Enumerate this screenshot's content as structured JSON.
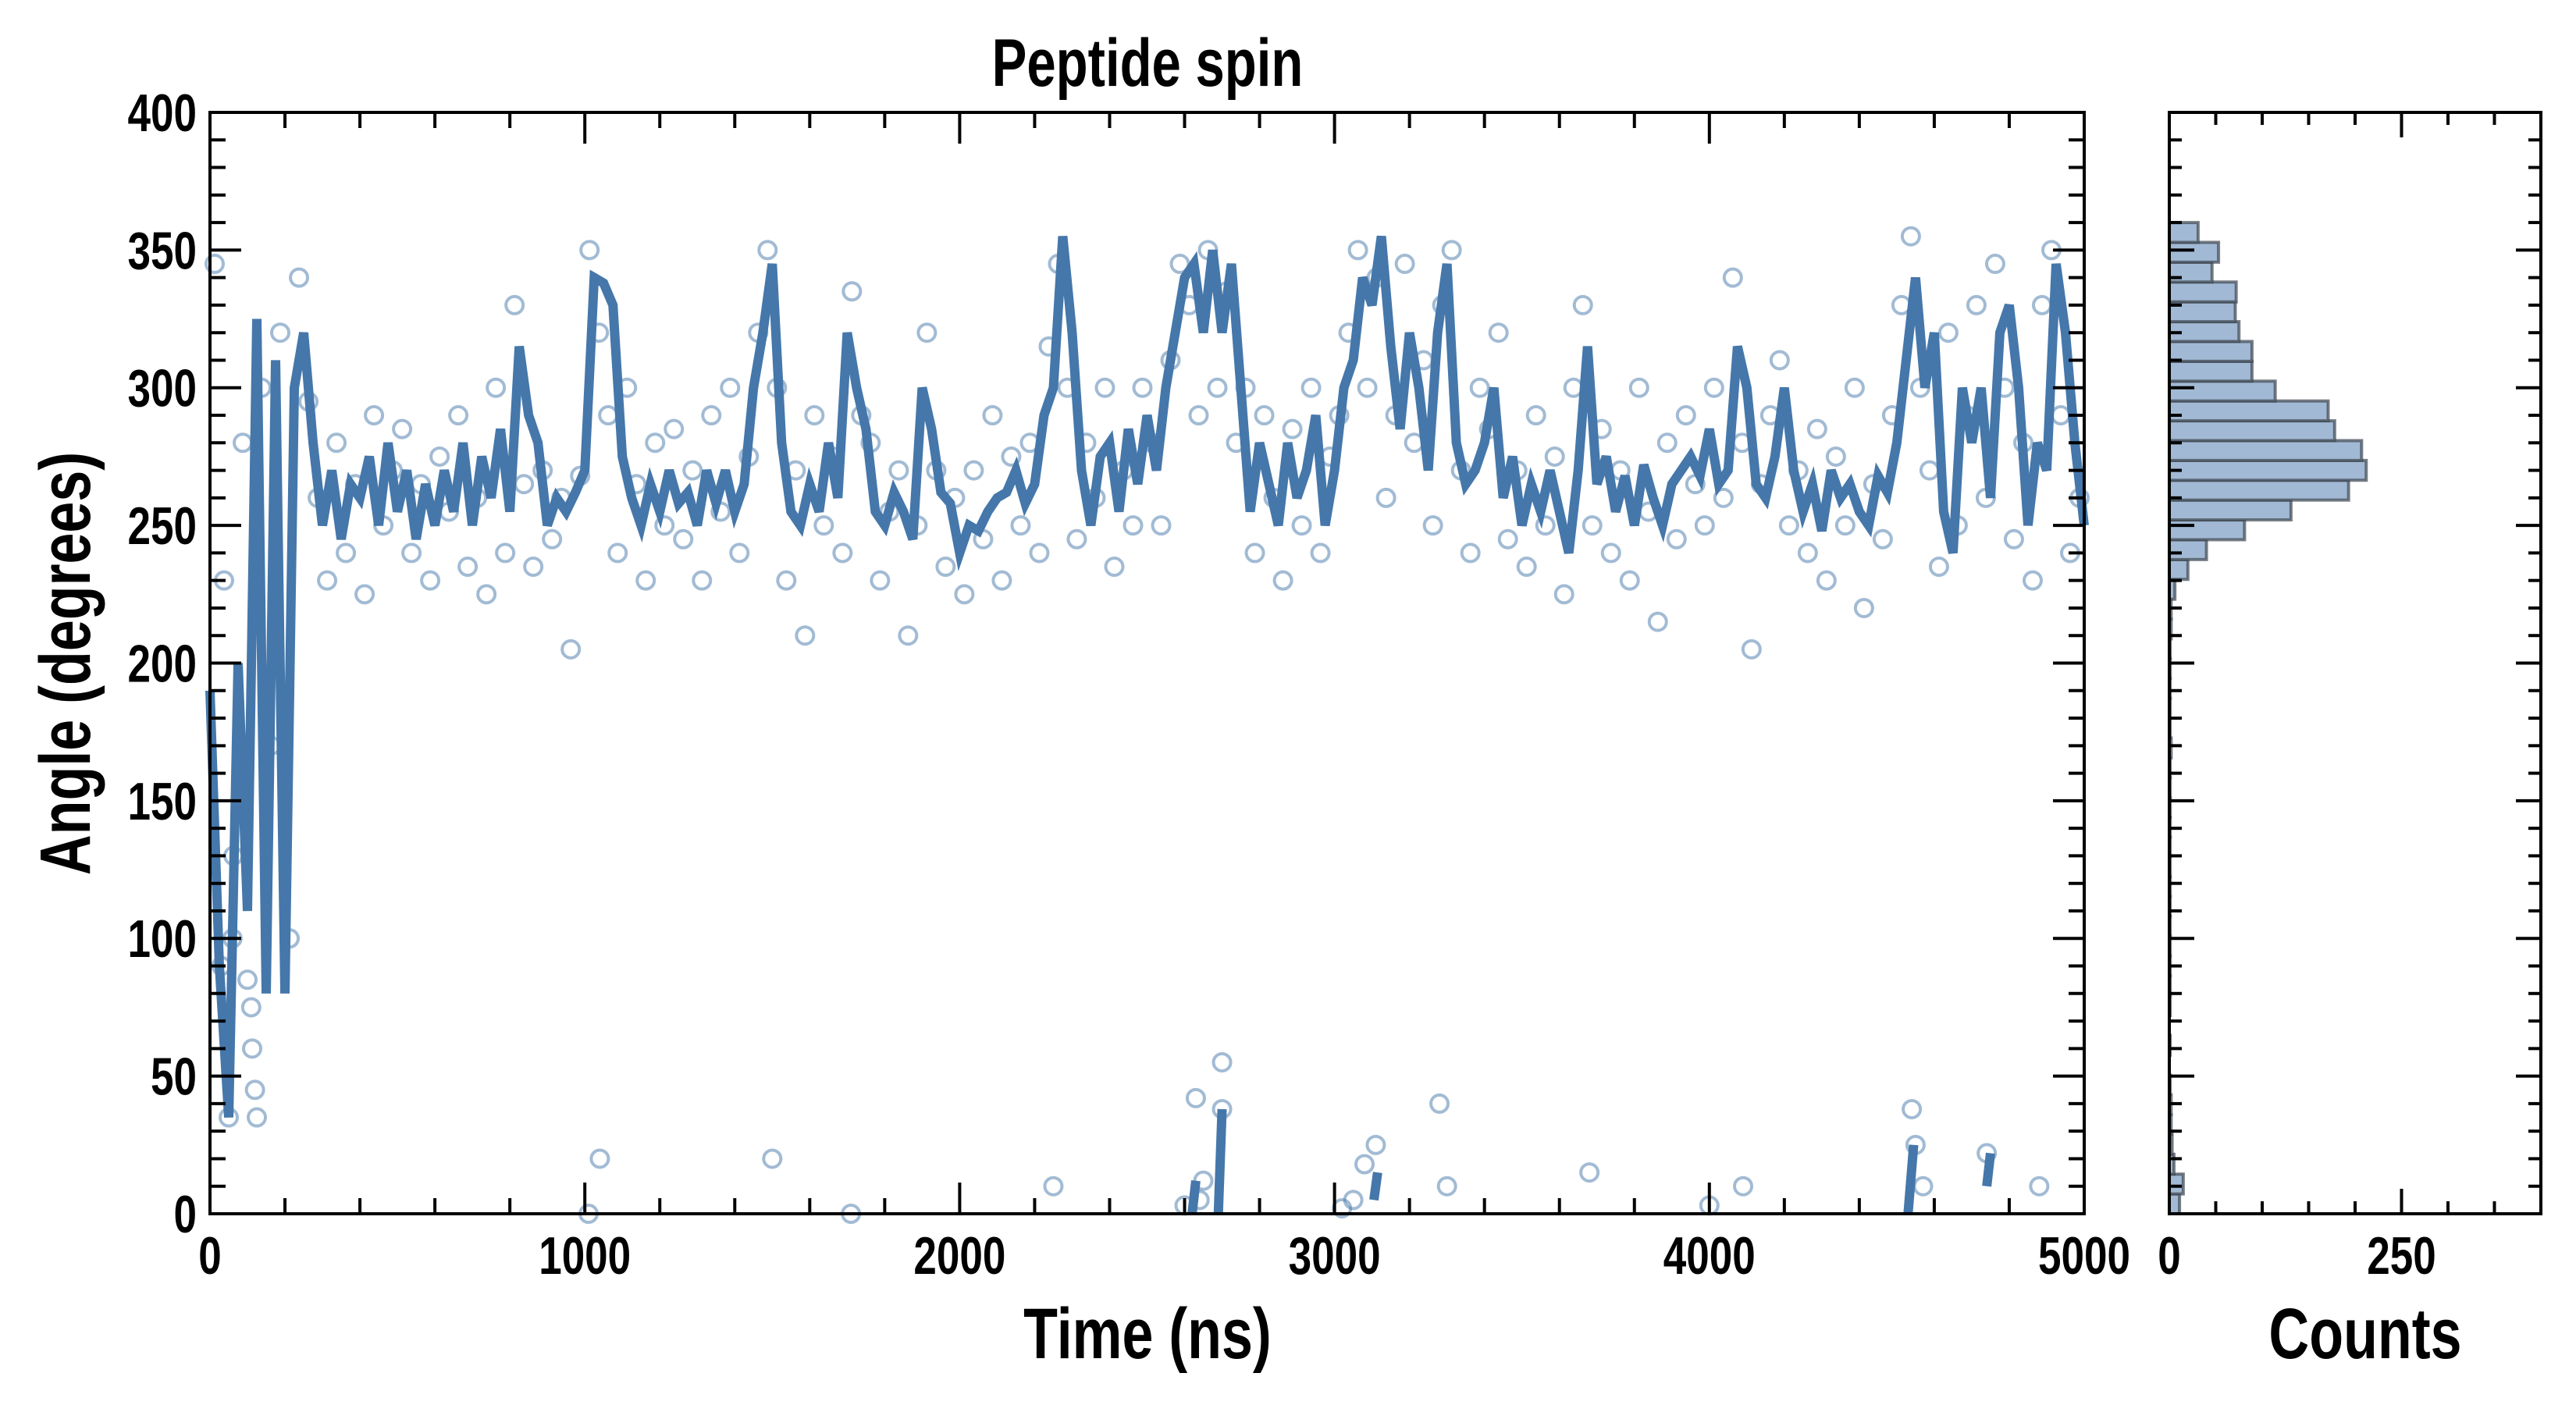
{
  "chart_data": [
    {
      "type": "scatter",
      "title": "Peptide spin",
      "xlabel": "Time (ns)",
      "ylabel": "Angle (degrees)",
      "xlim": [
        0,
        5000
      ],
      "ylim": [
        0,
        400
      ],
      "xticks": [
        "0",
        "1000",
        "2000",
        "3000",
        "4000",
        "5000"
      ],
      "yticks": [
        "0",
        "50",
        "100",
        "150",
        "200",
        "250",
        "300",
        "350",
        "400"
      ],
      "colors": {
        "line": "#4577aa",
        "marker": "#4577aa"
      },
      "line_series": {
        "name": "smoothed",
        "x_start": 0,
        "x_step": 25,
        "y": [
          190,
          90,
          35,
          200,
          110,
          325,
          80,
          310,
          80,
          300,
          320,
          280,
          250,
          270,
          245,
          265,
          260,
          275,
          250,
          280,
          255,
          270,
          245,
          265,
          250,
          270,
          255,
          280,
          250,
          275,
          260,
          285,
          255,
          315,
          290,
          280,
          250,
          260,
          255,
          262,
          270,
          340,
          338,
          330,
          275,
          260,
          250,
          265,
          255,
          270,
          258,
          262,
          250,
          270,
          258,
          270,
          255,
          265,
          300,
          320,
          345,
          280,
          255,
          250,
          265,
          255,
          280,
          260,
          320,
          300,
          285,
          255,
          250,
          262,
          255,
          245,
          300,
          285,
          262,
          258,
          240,
          250,
          248,
          255,
          260,
          262,
          270,
          258,
          265,
          290,
          300,
          355,
          320,
          270,
          250,
          275,
          280,
          255,
          285,
          265,
          290,
          270,
          300,
          320,
          340,
          345,
          320,
          350,
          320,
          345,
          300,
          255,
          280,
          265,
          250,
          280,
          260,
          270,
          290,
          250,
          270,
          300,
          310,
          340,
          330,
          355,
          315,
          285,
          320,
          300,
          270,
          320,
          345,
          280,
          265,
          270,
          280,
          300,
          260,
          275,
          250,
          265,
          255,
          270,
          255,
          240,
          270,
          315,
          265,
          275,
          255,
          268,
          250,
          272,
          260,
          250,
          265,
          270,
          275,
          268,
          285,
          265,
          270,
          315,
          300,
          265,
          260,
          275,
          300,
          270,
          255,
          265,
          248,
          270,
          260,
          265,
          255,
          250,
          268,
          262,
          280,
          310,
          340,
          300,
          320,
          255,
          240,
          300,
          280,
          300,
          260,
          320,
          330,
          300,
          250,
          280,
          270,
          345,
          320,
          280,
          250
        ]
      },
      "line_wrap_segments": [
        [
          [
            2620,
            0
          ],
          [
            2630,
            12
          ]
        ],
        [
          [
            2690,
            0
          ],
          [
            2700,
            38
          ]
        ],
        [
          [
            3105,
            5
          ],
          [
            3115,
            15
          ]
        ],
        [
          [
            4530,
            0
          ],
          [
            4545,
            25
          ]
        ],
        [
          [
            4740,
            10
          ],
          [
            4750,
            22
          ]
        ]
      ],
      "scatter_series": {
        "name": "raw",
        "x_start": 12.5,
        "x_step": 25,
        "y": [
          345,
          230,
          130,
          280,
          60,
          300,
          170,
          320,
          100,
          340,
          295,
          260,
          230,
          280,
          240,
          265,
          225,
          290,
          250,
          270,
          285,
          240,
          265,
          230,
          275,
          255,
          290,
          235,
          260,
          225,
          300,
          240,
          330,
          265,
          235,
          270,
          245,
          260,
          205,
          268,
          350,
          320,
          290,
          240,
          300,
          265,
          230,
          280,
          250,
          285,
          245,
          270,
          230,
          290,
          255,
          300,
          240,
          275,
          320,
          350,
          300,
          230,
          270,
          210,
          290,
          250,
          275,
          240,
          335,
          290,
          280,
          230,
          255,
          270,
          210,
          250,
          320,
          270,
          235,
          260,
          225,
          270,
          245,
          290,
          230,
          275,
          250,
          280,
          240,
          315,
          345,
          300,
          245,
          280,
          260,
          300,
          235,
          270,
          250,
          300,
          280,
          250,
          310,
          345,
          330,
          290,
          350,
          300,
          335,
          280,
          300,
          240,
          290,
          260,
          230,
          285,
          250,
          300,
          240,
          275,
          290,
          320,
          350,
          300,
          340,
          260,
          290,
          345,
          280,
          310,
          250,
          330,
          350,
          270,
          240,
          300,
          285,
          320,
          245,
          270,
          235,
          290,
          250,
          275,
          225,
          300,
          330,
          250,
          285,
          240,
          270,
          230,
          300,
          255,
          215,
          280,
          245,
          290,
          265,
          250,
          300,
          260,
          340,
          280,
          205,
          265,
          290,
          310,
          250,
          270,
          240,
          285,
          230,
          275,
          250,
          300,
          220,
          265,
          245,
          290,
          330,
          355,
          300,
          270,
          235,
          320,
          250,
          290,
          330,
          260,
          345,
          300,
          245,
          280,
          230,
          330,
          350,
          290,
          240,
          260
        ],
        "extra_points": [
          [
            30,
            90
          ],
          [
            50,
            35
          ],
          [
            60,
            100
          ],
          [
            100,
            85
          ],
          [
            110,
            75
          ],
          [
            120,
            45
          ],
          [
            125,
            35
          ],
          [
            1010,
            0
          ],
          [
            1040,
            20
          ],
          [
            1500,
            20
          ],
          [
            1710,
            0
          ],
          [
            2250,
            10
          ],
          [
            2600,
            3
          ],
          [
            2630,
            42
          ],
          [
            2640,
            5
          ],
          [
            2650,
            12
          ],
          [
            2700,
            55
          ],
          [
            2700,
            38
          ],
          [
            3020,
            2
          ],
          [
            3050,
            5
          ],
          [
            3080,
            18
          ],
          [
            3110,
            25
          ],
          [
            3280,
            40
          ],
          [
            3300,
            10
          ],
          [
            3680,
            15
          ],
          [
            4000,
            3
          ],
          [
            4090,
            10
          ],
          [
            4540,
            38
          ],
          [
            4550,
            25
          ],
          [
            4570,
            10
          ],
          [
            4740,
            22
          ],
          [
            4880,
            10
          ]
        ]
      }
    },
    {
      "type": "bar",
      "orientation": "horizontal",
      "xlabel": "Counts",
      "xlim": [
        0,
        400
      ],
      "xticks": [
        "0",
        "250"
      ],
      "ylim": [
        0,
        400
      ],
      "bin_start": 0,
      "bin_width": 7.2,
      "colors": {
        "fill": "#a1b9d4",
        "edge": "#3d4650"
      },
      "counts": [
        11,
        15,
        5,
        3,
        2,
        2,
        1,
        0,
        1,
        0,
        1,
        1,
        1,
        1,
        1,
        1,
        1,
        1,
        1,
        1,
        1,
        1,
        1,
        2,
        1,
        1,
        1,
        1,
        1,
        2,
        2,
        6,
        20,
        40,
        81,
        131,
        193,
        212,
        207,
        178,
        171,
        114,
        89,
        89,
        75,
        71,
        72,
        46,
        53,
        31
      ]
    }
  ]
}
